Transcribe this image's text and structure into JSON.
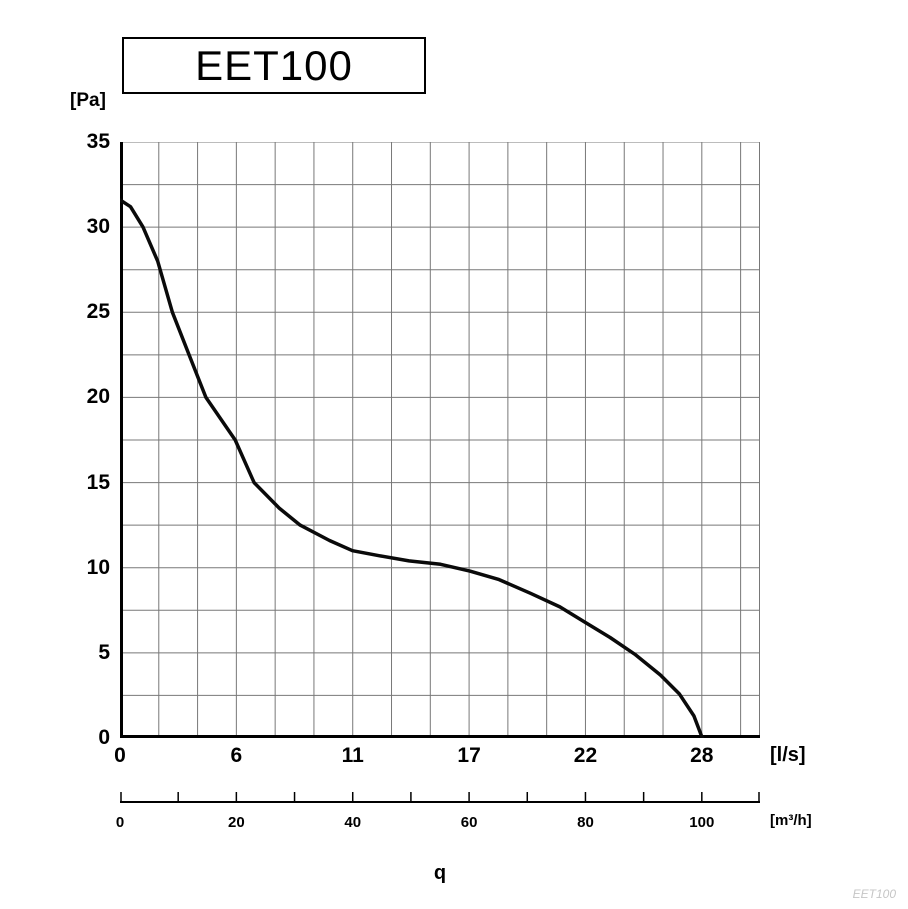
{
  "watermark": "EET100",
  "colors": {
    "curve": "#0a0a0a",
    "grid": "#787878",
    "axis": "#000000",
    "watermark": "#c6c6c6"
  },
  "chart_data": {
    "type": "line",
    "title": "EET100",
    "ylabel": "[Pa]",
    "xlabel": "[l/s]",
    "x2label": "[m³/h]",
    "quantity_label": "q",
    "grid": true,
    "legend": false,
    "ylim": [
      0,
      35
    ],
    "y_tick_step": 5,
    "y_minor_step": 2.5,
    "x_range_m3h": [
      0,
      110
    ],
    "x_major_step_m3h": 20,
    "x_minor_per_major": 3,
    "x2_tick_step_m3h": 10,
    "primary_ticks": [
      {
        "m3h": 0,
        "label": "0"
      },
      {
        "m3h": 20,
        "label": "6"
      },
      {
        "m3h": 40,
        "label": "11"
      },
      {
        "m3h": 60,
        "label": "17"
      },
      {
        "m3h": 80,
        "label": "22"
      },
      {
        "m3h": 100,
        "label": "28"
      }
    ],
    "secondary_ticks": [
      {
        "m3h": 0,
        "label": "0"
      },
      {
        "m3h": 20,
        "label": "20"
      },
      {
        "m3h": 40,
        "label": "40"
      },
      {
        "m3h": 60,
        "label": "60"
      },
      {
        "m3h": 80,
        "label": "80"
      },
      {
        "m3h": 100,
        "label": "100"
      }
    ],
    "y_ticks": [
      0,
      5,
      10,
      15,
      20,
      25,
      30,
      35
    ],
    "series": [
      {
        "name": "EET100 pressure curve",
        "points_ls_pa": [
          [
            0,
            31.6
          ],
          [
            0.5,
            31.2
          ],
          [
            1.1,
            30.0
          ],
          [
            1.8,
            28.0
          ],
          [
            2.5,
            25.0
          ],
          [
            3.3,
            22.5
          ],
          [
            4.1,
            20.0
          ],
          [
            5.5,
            17.5
          ],
          [
            6.4,
            15.0
          ],
          [
            7.6,
            13.5
          ],
          [
            8.6,
            12.5
          ],
          [
            10.0,
            11.6
          ],
          [
            11.1,
            11.0
          ],
          [
            12.4,
            10.7
          ],
          [
            13.8,
            10.4
          ],
          [
            15.3,
            10.2
          ],
          [
            16.7,
            9.8
          ],
          [
            18.1,
            9.3
          ],
          [
            19.6,
            8.5
          ],
          [
            21.0,
            7.7
          ],
          [
            22.2,
            6.8
          ],
          [
            23.4,
            5.9
          ],
          [
            24.6,
            4.9
          ],
          [
            25.8,
            3.7
          ],
          [
            26.7,
            2.6
          ],
          [
            27.4,
            1.3
          ],
          [
            27.8,
            0
          ]
        ]
      }
    ]
  }
}
